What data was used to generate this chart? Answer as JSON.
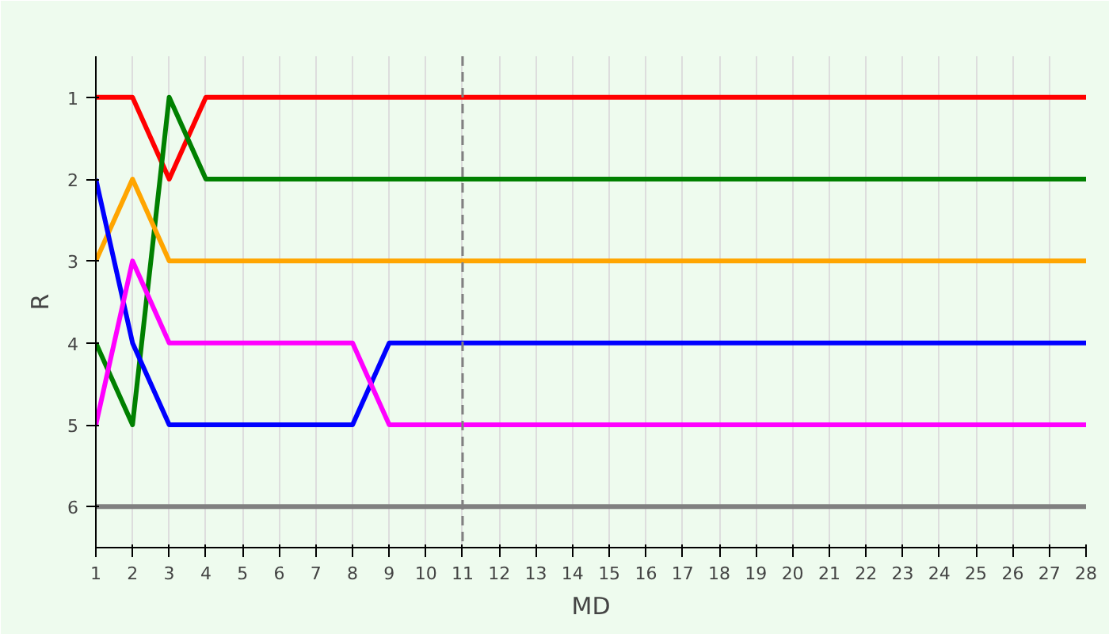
{
  "chart_data": {
    "type": "line",
    "xlabel": "MD",
    "ylabel": "R",
    "x": [
      1,
      2,
      3,
      4,
      5,
      6,
      7,
      8,
      9,
      10,
      11,
      12,
      13,
      14,
      15,
      16,
      17,
      18,
      19,
      20,
      21,
      22,
      23,
      24,
      25,
      26,
      27,
      28
    ],
    "series": [
      {
        "color": "#ff0000",
        "values": [
          1,
          1,
          2,
          1,
          1,
          1,
          1,
          1,
          1,
          1,
          1,
          1,
          1,
          1,
          1,
          1,
          1,
          1,
          1,
          1,
          1,
          1,
          1,
          1,
          1,
          1,
          1,
          1
        ]
      },
      {
        "color": "#008000",
        "values": [
          4,
          5,
          1,
          2,
          2,
          2,
          2,
          2,
          2,
          2,
          2,
          2,
          2,
          2,
          2,
          2,
          2,
          2,
          2,
          2,
          2,
          2,
          2,
          2,
          2,
          2,
          2,
          2
        ]
      },
      {
        "color": "#ffa500",
        "values": [
          3,
          2,
          3,
          3,
          3,
          3,
          3,
          3,
          3,
          3,
          3,
          3,
          3,
          3,
          3,
          3,
          3,
          3,
          3,
          3,
          3,
          3,
          3,
          3,
          3,
          3,
          3,
          3
        ]
      },
      {
        "color": "#0000ff",
        "values": [
          2,
          4,
          5,
          5,
          5,
          5,
          5,
          5,
          4,
          4,
          4,
          4,
          4,
          4,
          4,
          4,
          4,
          4,
          4,
          4,
          4,
          4,
          4,
          4,
          4,
          4,
          4,
          4
        ]
      },
      {
        "color": "#ff00ff",
        "values": [
          5,
          3,
          4,
          4,
          4,
          4,
          4,
          4,
          5,
          5,
          5,
          5,
          5,
          5,
          5,
          5,
          5,
          5,
          5,
          5,
          5,
          5,
          5,
          5,
          5,
          5,
          5,
          5
        ]
      },
      {
        "color": "#808080",
        "values": [
          6,
          6,
          6,
          6,
          6,
          6,
          6,
          6,
          6,
          6,
          6,
          6,
          6,
          6,
          6,
          6,
          6,
          6,
          6,
          6,
          6,
          6,
          6,
          6,
          6,
          6,
          6,
          6
        ]
      }
    ],
    "xlim": [
      1,
      28
    ],
    "ylim": [
      6.5,
      0.5
    ],
    "xticks": [
      1,
      2,
      3,
      4,
      5,
      6,
      7,
      8,
      9,
      10,
      11,
      12,
      13,
      14,
      15,
      16,
      17,
      18,
      19,
      20,
      21,
      22,
      23,
      24,
      25,
      26,
      27,
      28
    ],
    "yticks": [
      1,
      2,
      3,
      4,
      5,
      6
    ],
    "grid": "x",
    "ref_lines": [
      {
        "axis": "x",
        "value": 11,
        "color": "#808080",
        "line_style": "dashed"
      }
    ]
  }
}
